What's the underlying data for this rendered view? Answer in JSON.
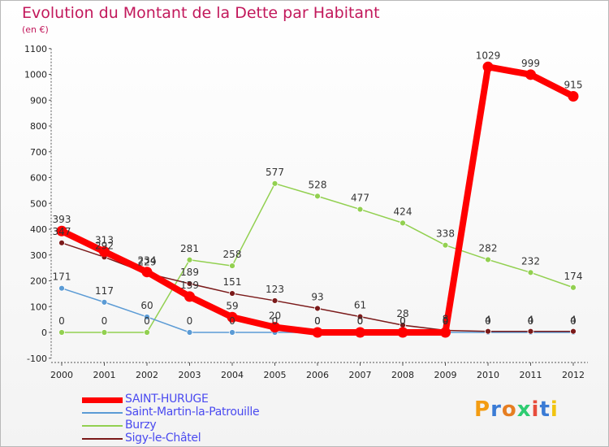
{
  "title": "Evolution du Montant de la Dette par Habitant",
  "unit": "(en €)",
  "logo": "Proxiti",
  "chart_data": {
    "type": "line",
    "x": [
      "2000",
      "2001",
      "2002",
      "2003",
      "2004",
      "2005",
      "2006",
      "2007",
      "2008",
      "2009",
      "2010",
      "2011",
      "2012"
    ],
    "ylim": [
      -100,
      1100
    ],
    "yticks": [
      -100,
      0,
      100,
      200,
      300,
      400,
      500,
      600,
      700,
      800,
      900,
      1000,
      1100
    ],
    "grid": false,
    "legend_position": "bottom-left",
    "series": [
      {
        "name": "SAINT-HURUGE",
        "color": "#ff0000",
        "values": [
          393,
          313,
          234,
          139,
          59,
          20,
          0,
          0,
          0,
          0,
          1029,
          999,
          915
        ],
        "labels": [
          "393",
          "313",
          "234",
          "139",
          "59",
          "20",
          "0",
          "0",
          "0",
          "0",
          "1029",
          "999",
          "915"
        ]
      },
      {
        "name": "Saint-Martin-la-Patrouille",
        "color": "#5b9bd5",
        "values": [
          171,
          117,
          60,
          0,
          0,
          0,
          0,
          0,
          0,
          0,
          0,
          0,
          0
        ],
        "labels": [
          "171",
          "117",
          "60",
          "0",
          "0",
          "0",
          "0",
          "0",
          "0",
          "0",
          "0",
          "0",
          "0"
        ]
      },
      {
        "name": "Burzy",
        "color": "#92d050",
        "values": [
          0,
          0,
          0,
          281,
          258,
          577,
          528,
          477,
          424,
          338,
          282,
          232,
          174
        ],
        "labels": [
          "0",
          "0",
          "0",
          "281",
          "258",
          "577",
          "528",
          "477",
          "424",
          "338",
          "282",
          "232",
          "174"
        ]
      },
      {
        "name": "Sigy-le-Châtel",
        "color": "#7b1a1a",
        "values": [
          347,
          292,
          229,
          189,
          151,
          123,
          93,
          61,
          28,
          8,
          4,
          4,
          4
        ],
        "labels": [
          "347",
          "292",
          "229",
          "189",
          "151",
          "123",
          "93",
          "61",
          "28",
          "8",
          "4",
          "4",
          "4"
        ]
      }
    ]
  }
}
